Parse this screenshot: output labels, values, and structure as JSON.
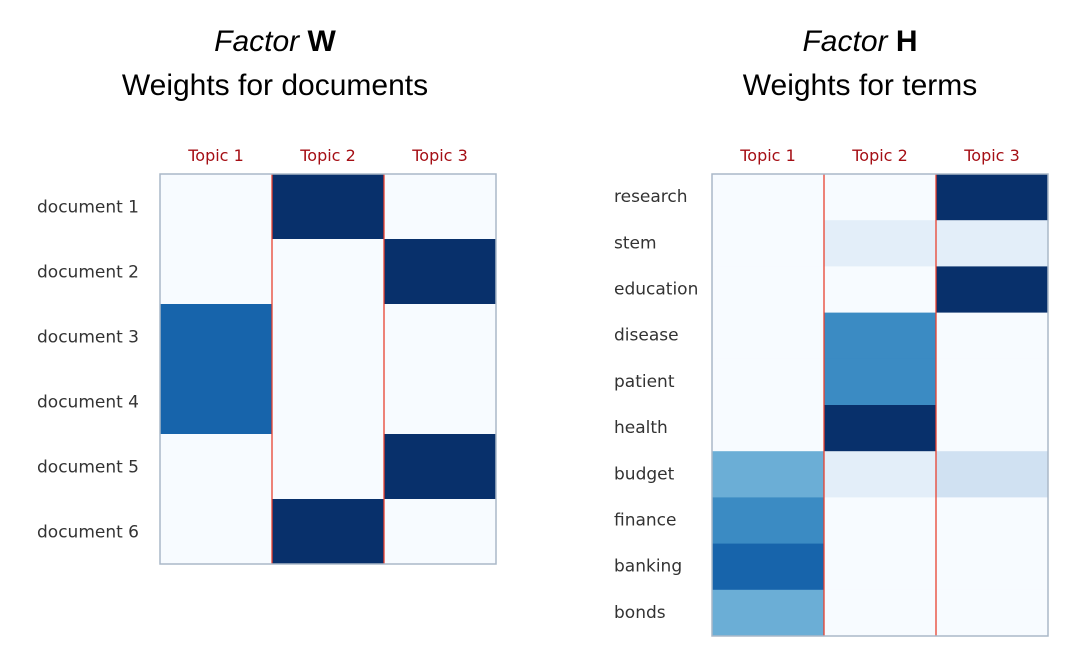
{
  "panels": {
    "W": {
      "title_italic": "Factor",
      "title_bold": "W",
      "subtitle": "Weights for documents"
    },
    "H": {
      "title_italic": "Factor",
      "title_bold": "H",
      "subtitle": "Weights for terms"
    }
  },
  "chart_data": [
    {
      "type": "heatmap",
      "id": "factor-w",
      "columns": [
        "Topic 1",
        "Topic 2",
        "Topic 3"
      ],
      "rows": [
        "document 1",
        "document 2",
        "document 3",
        "document 4",
        "document 5",
        "document 6"
      ],
      "values": [
        [
          0.0,
          1.0,
          0.0
        ],
        [
          0.0,
          0.0,
          1.0
        ],
        [
          0.8,
          0.0,
          0.0
        ],
        [
          0.8,
          0.0,
          0.0
        ],
        [
          0.0,
          0.0,
          1.0
        ],
        [
          0.0,
          1.0,
          0.0
        ]
      ],
      "colormap": "Blues",
      "grid": false
    },
    {
      "type": "heatmap",
      "id": "factor-h",
      "columns": [
        "Topic 1",
        "Topic 2",
        "Topic 3"
      ],
      "rows": [
        "research",
        "stem",
        "education",
        "disease",
        "patient",
        "health",
        "budget",
        "finance",
        "banking",
        "bonds"
      ],
      "values": [
        [
          0.0,
          0.0,
          1.0
        ],
        [
          0.0,
          0.1,
          0.1
        ],
        [
          0.0,
          0.0,
          1.0
        ],
        [
          0.0,
          0.65,
          0.0
        ],
        [
          0.0,
          0.65,
          0.0
        ],
        [
          0.0,
          1.0,
          0.0
        ],
        [
          0.5,
          0.1,
          0.2
        ],
        [
          0.65,
          0.0,
          0.0
        ],
        [
          0.8,
          0.0,
          0.0
        ],
        [
          0.5,
          0.0,
          0.0
        ]
      ],
      "colormap": "Blues",
      "grid": false
    }
  ]
}
